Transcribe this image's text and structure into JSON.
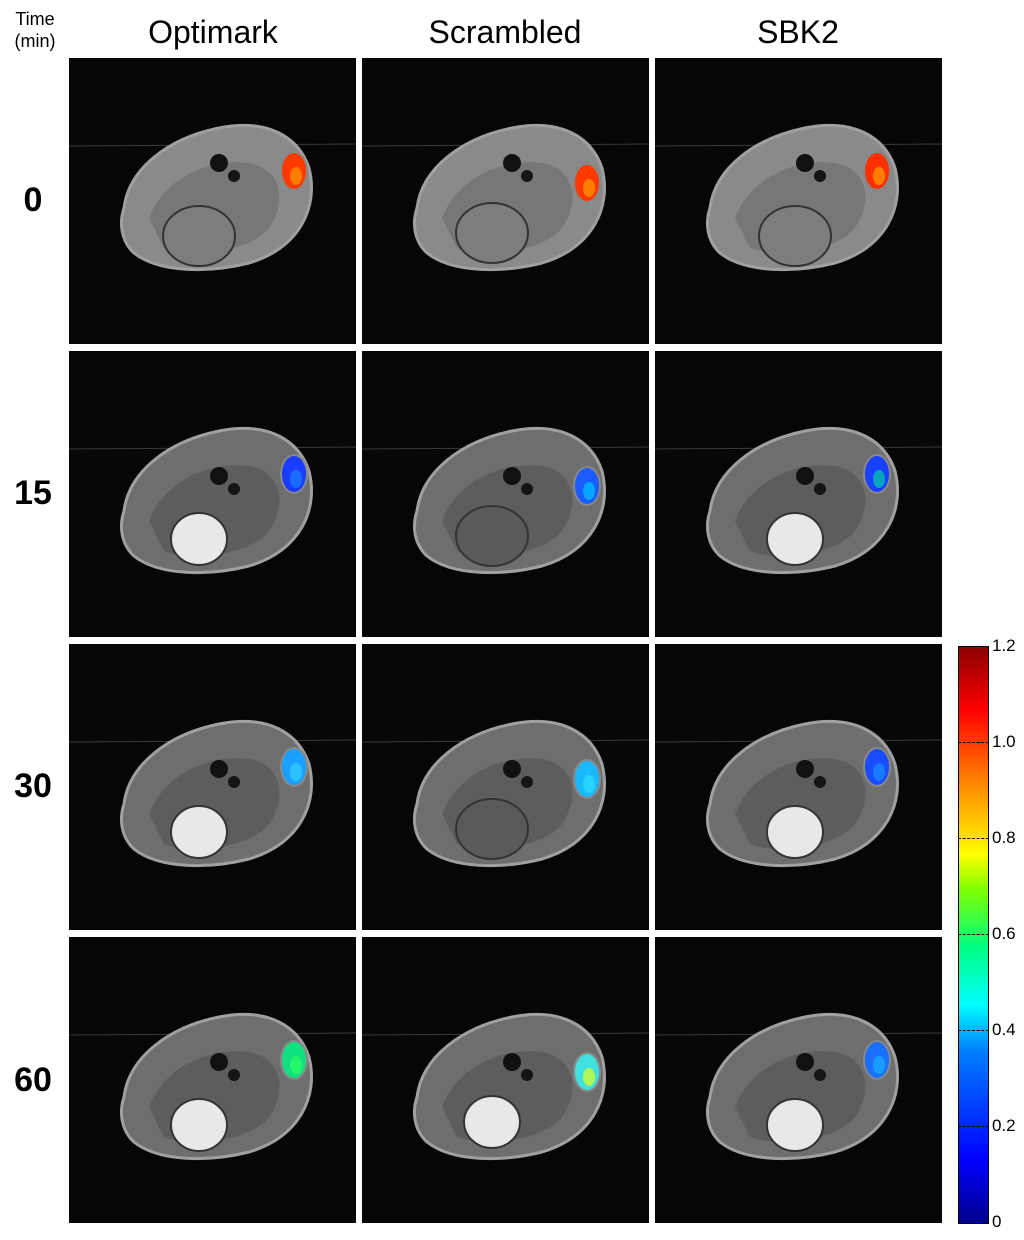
{
  "header": {
    "time_label": "Time\n(min)",
    "columns": [
      "Optimark",
      "Scrambled",
      "SBK2"
    ]
  },
  "rows": [
    "0",
    "15",
    "30",
    "60"
  ],
  "panels": [
    [
      {
        "spot": "#ff3a00",
        "spot2": "#ff9a00",
        "bladder": false
      },
      {
        "spot": "#ff3a00",
        "spot2": "#ff9a00",
        "bladder": false
      },
      {
        "spot": "#ff3000",
        "spot2": "#ffa000",
        "bladder": false
      }
    ],
    [
      {
        "spot": "#1a3cff",
        "spot2": "#1a80ff",
        "bladder": true
      },
      {
        "spot": "#1a5cff",
        "spot2": "#00c8ff",
        "bladder": false
      },
      {
        "spot": "#1a40ff",
        "spot2": "#00d0a0",
        "bladder": true
      }
    ],
    [
      {
        "spot": "#1aa0ff",
        "spot2": "#30d0ff",
        "bladder": true
      },
      {
        "spot": "#1ab8ff",
        "spot2": "#30e0ff",
        "bladder": false
      },
      {
        "spot": "#1a4cff",
        "spot2": "#1a90ff",
        "bladder": true
      }
    ],
    [
      {
        "spot": "#10e080",
        "spot2": "#30ff60",
        "bladder": true
      },
      {
        "spot": "#40e0e0",
        "spot2": "#e0ff20",
        "bladder": true
      },
      {
        "spot": "#1a70ff",
        "spot2": "#1ab0ff",
        "bladder": true
      }
    ]
  ],
  "colorbar": {
    "ticks": [
      "1.2",
      "1.0",
      "0.8",
      "0.6",
      "0.4",
      "0.2",
      "0"
    ],
    "colors": [
      "#00008b",
      "#0000ff",
      "#00ffff",
      "#00ff80",
      "#ffff00",
      "#ff0000",
      "#8b0000"
    ]
  }
}
